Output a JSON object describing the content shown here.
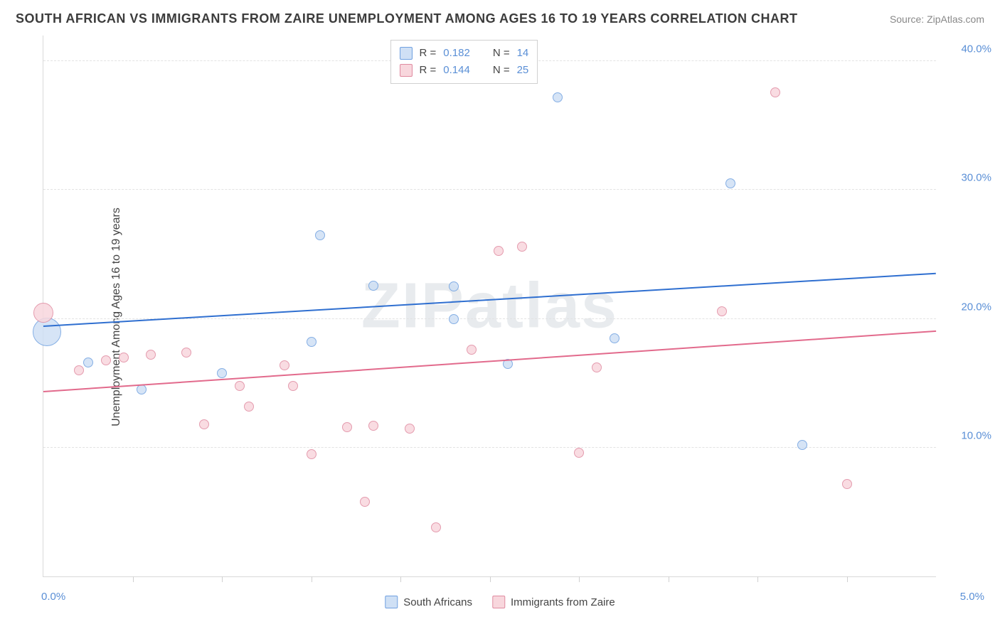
{
  "chart": {
    "type": "scatter",
    "title": "SOUTH AFRICAN VS IMMIGRANTS FROM ZAIRE UNEMPLOYMENT AMONG AGES 16 TO 19 YEARS CORRELATION CHART",
    "source_label": "Source: ZipAtlas.com",
    "ylabel": "Unemployment Among Ages 16 to 19 years",
    "xlim": [
      0.0,
      5.0
    ],
    "ylim": [
      0.0,
      42.0
    ],
    "yticks": [
      10.0,
      20.0,
      30.0,
      40.0
    ],
    "ytick_labels": [
      "10.0%",
      "20.0%",
      "30.0%",
      "40.0%"
    ],
    "xlim_labels": {
      "left": "0.0%",
      "right": "5.0%"
    },
    "xtick_positions": [
      0.5,
      1.0,
      1.5,
      2.0,
      2.5,
      3.0,
      3.5,
      4.0,
      4.5
    ],
    "grid_color": "#e2e2e2",
    "background_color": "#ffffff",
    "axis_color": "#d9d9d9",
    "tick_label_color": "#5a8fd6",
    "watermark_text": "ZIPatlas",
    "series": [
      {
        "key": "south_africans",
        "label": "South Africans",
        "marker_fill": "#cfe0f5",
        "marker_stroke": "#6fa0e0",
        "trend_color": "#2f6fd0",
        "points": [
          {
            "x": 0.02,
            "y": 19.0,
            "r": 20
          },
          {
            "x": 0.25,
            "y": 16.6,
            "r": 7
          },
          {
            "x": 0.55,
            "y": 14.5,
            "r": 7
          },
          {
            "x": 1.0,
            "y": 15.8,
            "r": 7
          },
          {
            "x": 1.5,
            "y": 18.2,
            "r": 7
          },
          {
            "x": 1.55,
            "y": 26.5,
            "r": 7
          },
          {
            "x": 1.85,
            "y": 22.6,
            "r": 7
          },
          {
            "x": 2.3,
            "y": 22.5,
            "r": 7
          },
          {
            "x": 2.6,
            "y": 16.5,
            "r": 7
          },
          {
            "x": 2.88,
            "y": 37.2,
            "r": 7
          },
          {
            "x": 3.2,
            "y": 18.5,
            "r": 7
          },
          {
            "x": 3.85,
            "y": 30.5,
            "r": 7
          },
          {
            "x": 4.25,
            "y": 10.2,
            "r": 7
          },
          {
            "x": 2.3,
            "y": 20.0,
            "r": 7
          }
        ],
        "trend": {
          "y_start": 19.4,
          "y_end": 23.5
        },
        "R": "0.182",
        "N": "14"
      },
      {
        "key": "immigrants_zaire",
        "label": "Immigrants from Zaire",
        "marker_fill": "#f8d7dd",
        "marker_stroke": "#e08aa0",
        "trend_color": "#e26a8c",
        "points": [
          {
            "x": 0.0,
            "y": 20.5,
            "r": 14
          },
          {
            "x": 0.2,
            "y": 16.0,
            "r": 7
          },
          {
            "x": 0.35,
            "y": 16.8,
            "r": 7
          },
          {
            "x": 0.45,
            "y": 17.0,
            "r": 7
          },
          {
            "x": 0.6,
            "y": 17.2,
            "r": 7
          },
          {
            "x": 0.8,
            "y": 17.4,
            "r": 7
          },
          {
            "x": 0.9,
            "y": 11.8,
            "r": 7
          },
          {
            "x": 1.1,
            "y": 14.8,
            "r": 7
          },
          {
            "x": 1.15,
            "y": 13.2,
            "r": 7
          },
          {
            "x": 1.35,
            "y": 16.4,
            "r": 7
          },
          {
            "x": 1.4,
            "y": 14.8,
            "r": 7
          },
          {
            "x": 1.5,
            "y": 9.5,
            "r": 7
          },
          {
            "x": 1.7,
            "y": 11.6,
            "r": 7
          },
          {
            "x": 1.8,
            "y": 5.8,
            "r": 7
          },
          {
            "x": 1.85,
            "y": 11.7,
            "r": 7
          },
          {
            "x": 2.05,
            "y": 11.5,
            "r": 7
          },
          {
            "x": 2.2,
            "y": 3.8,
            "r": 7
          },
          {
            "x": 2.4,
            "y": 17.6,
            "r": 7
          },
          {
            "x": 2.55,
            "y": 25.3,
            "r": 7
          },
          {
            "x": 2.68,
            "y": 25.6,
            "r": 7
          },
          {
            "x": 3.0,
            "y": 9.6,
            "r": 7
          },
          {
            "x": 3.1,
            "y": 16.2,
            "r": 7
          },
          {
            "x": 3.8,
            "y": 20.6,
            "r": 7
          },
          {
            "x": 4.1,
            "y": 37.6,
            "r": 7
          },
          {
            "x": 4.5,
            "y": 7.2,
            "r": 7
          }
        ],
        "trend": {
          "y_start": 14.3,
          "y_end": 19.0
        },
        "R": "0.144",
        "N": "25"
      }
    ],
    "rn_legend": {
      "R_label": "R =",
      "N_label": "N ="
    }
  }
}
